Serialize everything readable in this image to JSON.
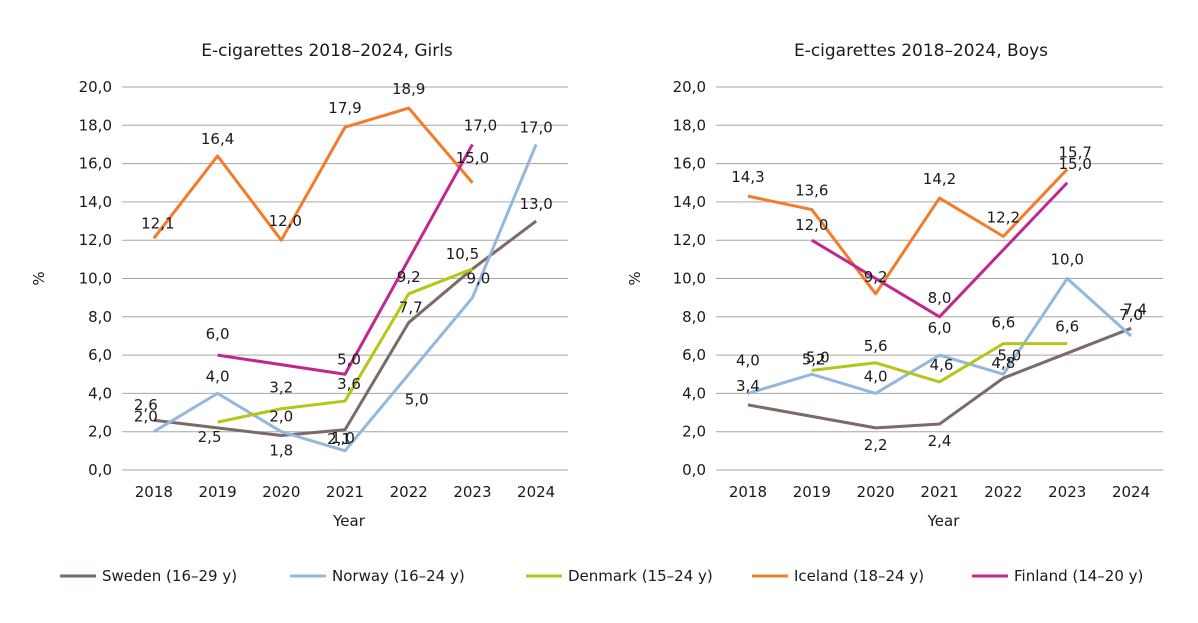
{
  "chart_data": [
    {
      "type": "line",
      "title": "E-cigarettes 2018–2024, Girls",
      "xlabel": "Year",
      "ylabel": "%",
      "ylim": [
        0,
        20
      ],
      "yticks": [
        "0,0",
        "2,0",
        "4,0",
        "6,0",
        "8,0",
        "10,0",
        "12,0",
        "14,0",
        "16,0",
        "18,0",
        "20,0"
      ],
      "categories": [
        "2018",
        "2019",
        "2020",
        "2021",
        "2022",
        "2023",
        "2024"
      ],
      "grid": true,
      "series": [
        {
          "name": "Sweden (16–29 y)",
          "color": "#7b6a65",
          "values": [
            2.6,
            2.2,
            1.8,
            2.1,
            7.7,
            10.5,
            13.0
          ],
          "labels": [
            "2,6",
            "",
            "1,8",
            "2,1",
            "7,7",
            "10,5",
            "13,0"
          ]
        },
        {
          "name": "Norway (16–24 y)",
          "color": "#93b8dd",
          "values": [
            2.0,
            4.0,
            2.0,
            1.0,
            5.0,
            9.0,
            17.0
          ],
          "labels": [
            "2,0",
            "4,0",
            "2,0",
            "1,0",
            "5,0",
            "9,0",
            "17,0"
          ]
        },
        {
          "name": "Denmark (15–24 y)",
          "color": "#b6c518",
          "values": [
            null,
            2.5,
            3.2,
            3.6,
            9.2,
            10.5,
            null
          ],
          "labels": [
            "",
            "2,5",
            "3,2",
            "3,6",
            "9,2",
            "",
            ""
          ]
        },
        {
          "name": "Iceland (18–24 y)",
          "color": "#f47b2a",
          "values": [
            12.1,
            16.4,
            12.0,
            17.9,
            18.9,
            15.0,
            null
          ],
          "labels": [
            "12,1",
            "16,4",
            "12,0",
            "17,9",
            "18,9",
            "15,0",
            ""
          ]
        },
        {
          "name": "Finland (14–20 y)",
          "color": "#c2268f",
          "values": [
            null,
            6.0,
            null,
            5.0,
            null,
            17.0,
            null
          ],
          "labels": [
            "",
            "6,0",
            "",
            "5,0",
            "",
            "17,0",
            ""
          ]
        }
      ]
    },
    {
      "type": "line",
      "title": "E-cigarettes 2018–2024, Boys",
      "xlabel": "Year",
      "ylabel": "%",
      "ylim": [
        0,
        20
      ],
      "yticks": [
        "0,0",
        "2,0",
        "4,0",
        "6,0",
        "8,0",
        "10,0",
        "12,0",
        "14,0",
        "16,0",
        "18,0",
        "20,0"
      ],
      "categories": [
        "2018",
        "2019",
        "2020",
        "2021",
        "2022",
        "2023",
        "2024"
      ],
      "grid": true,
      "series": [
        {
          "name": "Sweden (16–29 y)",
          "color": "#7b6a65",
          "values": [
            3.4,
            2.8,
            2.2,
            2.4,
            4.8,
            6.1,
            7.4
          ],
          "labels": [
            "3,4",
            "",
            "2,2",
            "2,4",
            "4,8",
            "",
            "7,4"
          ]
        },
        {
          "name": "Norway (16–24 y)",
          "color": "#93b8dd",
          "values": [
            4.0,
            5.0,
            4.0,
            6.0,
            5.0,
            10.0,
            7.0
          ],
          "labels": [
            "4,0",
            "5,0",
            "4,0",
            "6,0",
            "5,0",
            "10,0",
            "7,0"
          ]
        },
        {
          "name": "Denmark (15–24 y)",
          "color": "#b6c518",
          "values": [
            null,
            5.2,
            5.6,
            4.6,
            6.6,
            6.6,
            null
          ],
          "labels": [
            "",
            "5,2",
            "5,6",
            "4,6",
            "6,6",
            "6,6",
            ""
          ]
        },
        {
          "name": "Iceland (18–24 y)",
          "color": "#f47b2a",
          "values": [
            14.3,
            13.6,
            9.2,
            14.2,
            12.2,
            15.7,
            null
          ],
          "labels": [
            "14,3",
            "13,6",
            "9,2",
            "14,2",
            "12,2",
            "15,7",
            ""
          ]
        },
        {
          "name": "Finland (14–20 y)",
          "color": "#c2268f",
          "values": [
            null,
            12.0,
            10.0,
            8.0,
            11.5,
            15.0,
            null
          ],
          "labels": [
            "",
            "12,0",
            "",
            "8,0",
            "",
            "15,0",
            ""
          ]
        }
      ]
    }
  ],
  "legend": {
    "placement": "bottom",
    "items": [
      {
        "label": "Sweden (16–29 y)",
        "color": "#7b6a65"
      },
      {
        "label": "Norway (16–24 y)",
        "color": "#93b8dd"
      },
      {
        "label": "Denmark (15–24 y)",
        "color": "#b6c518"
      },
      {
        "label": "Iceland (18–24 y)",
        "color": "#f47b2a"
      },
      {
        "label": "Finland (14–20 y)",
        "color": "#c2268f"
      }
    ]
  }
}
